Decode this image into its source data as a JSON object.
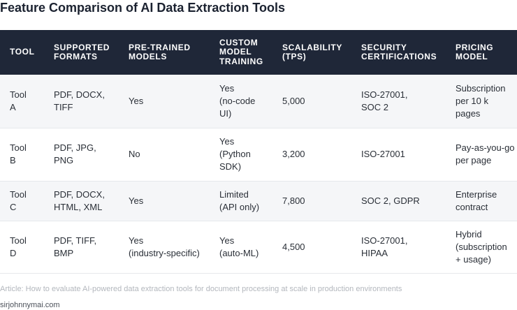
{
  "title": "Feature Comparison of AI Data Extraction Tools",
  "table": {
    "headers": [
      "TOOL",
      "SUPPORTED\nFORMATS",
      "PRE-TRAINED\nMODELS",
      "CUSTOM\nMODEL\nTRAINING",
      "SCALABILITY\n(TPS)",
      "SECURITY\nCERTIFICATIONS",
      "PRICING\nMODEL"
    ],
    "rows": [
      [
        "Tool\nA",
        "PDF, DOCX,\nTIFF",
        "Yes",
        "Yes\n(no-code\nUI)",
        "5,000",
        "ISO-27001,\nSOC 2",
        "Subscription\nper 10 k\npages"
      ],
      [
        "Tool\nB",
        "PDF, JPG,\nPNG",
        "No",
        "Yes\n(Python\nSDK)",
        "3,200",
        "ISO-27001",
        "Pay-as-you-go\nper page"
      ],
      [
        "Tool\nC",
        "PDF, DOCX,\nHTML, XML",
        "Yes",
        "Limited\n(API only)",
        "7,800",
        "SOC 2, GDPR",
        "Enterprise\ncontract"
      ],
      [
        "Tool\nD",
        "PDF, TIFF,\nBMP",
        "Yes\n(industry-specific)",
        "Yes\n(auto-ML)",
        "4,500",
        "ISO-27001,\nHIPAA",
        "Hybrid\n(subscription\n+ usage)"
      ]
    ]
  },
  "caption": "Article: How to evaluate AI-powered data extraction tools for document processing at scale in production environments",
  "source": "sirjohnnymai.com"
}
